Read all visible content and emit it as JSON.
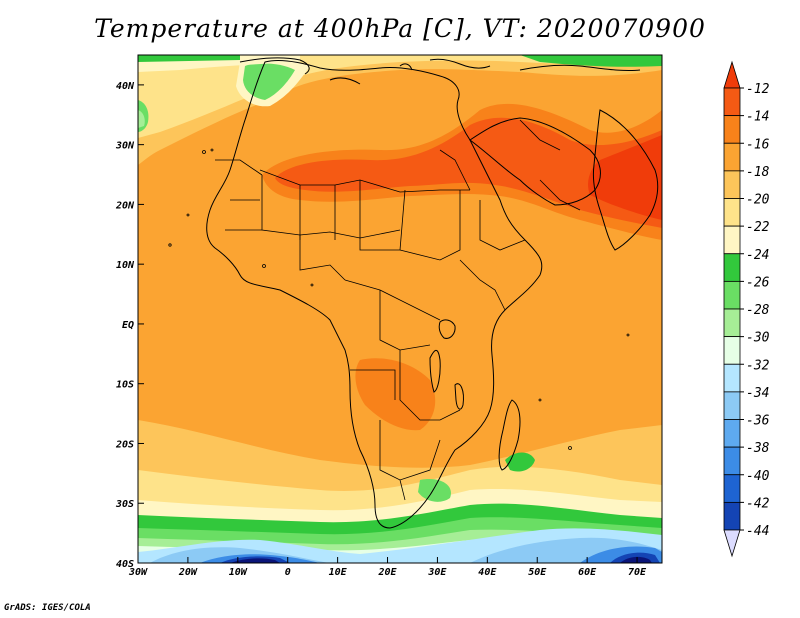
{
  "title": "Temperature at 400hPa [C], VT: 2020070900",
  "credit": "GrADS: IGES/COLA",
  "map": {
    "lon_labels": [
      "30W",
      "20W",
      "10W",
      "0",
      "10E",
      "20E",
      "30E",
      "40E",
      "50E",
      "60E",
      "70E"
    ],
    "lat_labels": [
      "40N",
      "30N",
      "20N",
      "10N",
      "EQ",
      "10S",
      "20S",
      "30S",
      "40S"
    ],
    "lon_range": [
      -30,
      75
    ],
    "lat_range": [
      -40,
      45
    ]
  },
  "colorbar": {
    "labels": [
      "-12",
      "-14",
      "-16",
      "-18",
      "-20",
      "-22",
      "-24",
      "-26",
      "-28",
      "-30",
      "-32",
      "-34",
      "-36",
      "-38",
      "-40",
      "-42",
      "-44"
    ],
    "colors": {
      "c_warm_top": "#f03c0a",
      "c_m12": "#f55a14",
      "c_m14": "#f8821a",
      "c_m16": "#fba432",
      "c_m18": "#fdc55a",
      "c_m20": "#fee38a",
      "c_m22": "#fff6c4",
      "c_m24": "#32c83c",
      "c_m26": "#6ade64",
      "c_m28": "#a6ee96",
      "c_m30": "#e6ffe6",
      "c_m32": "#b4e6ff",
      "c_m34": "#8ccaf5",
      "c_m36": "#5eaaf0",
      "c_m38": "#3c8ce6",
      "c_m40": "#1e64d2",
      "c_m42": "#1444b4",
      "c_m44": "#0a1478",
      "c_cold_end": "#dcdcff"
    }
  }
}
